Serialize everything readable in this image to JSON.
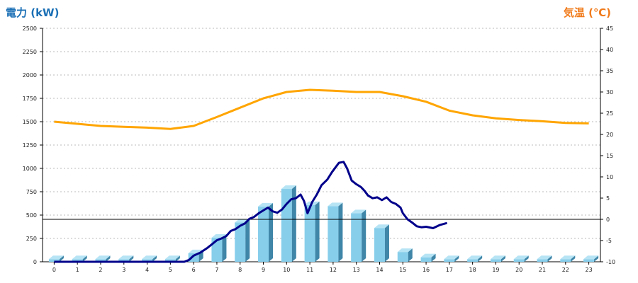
{
  "left_title": "電力 (kW)",
  "right_title": "気温 (℃)",
  "chart_data": {
    "type": "bar",
    "categories": [
      "0",
      "1",
      "2",
      "3",
      "4",
      "5",
      "6",
      "7",
      "8",
      "9",
      "10",
      "11",
      "12",
      "13",
      "14",
      "15",
      "16",
      "17",
      "18",
      "19",
      "20",
      "21",
      "22",
      "23"
    ],
    "series": [
      {
        "kind": "bar",
        "axis": "left",
        "values": [
          28,
          28,
          28,
          28,
          28,
          28,
          92,
          258,
          420,
          592,
          780,
          608,
          596,
          520,
          362,
          105,
          48,
          28,
          28,
          28,
          28,
          28,
          28,
          28
        ],
        "color": "#87ceeb"
      },
      {
        "kind": "line",
        "axis": "left",
        "color": "#00008b",
        "points": [
          [
            0,
            0
          ],
          [
            5.6,
            0
          ],
          [
            5.8,
            20
          ],
          [
            6.0,
            65
          ],
          [
            6.3,
            100
          ],
          [
            6.6,
            150
          ],
          [
            6.8,
            190
          ],
          [
            7.0,
            230
          ],
          [
            7.2,
            250
          ],
          [
            7.4,
            275
          ],
          [
            7.6,
            330
          ],
          [
            7.8,
            350
          ],
          [
            8.0,
            385
          ],
          [
            8.2,
            410
          ],
          [
            8.4,
            460
          ],
          [
            8.6,
            480
          ],
          [
            8.8,
            520
          ],
          [
            9.0,
            550
          ],
          [
            9.2,
            580
          ],
          [
            9.4,
            540
          ],
          [
            9.6,
            525
          ],
          [
            9.8,
            560
          ],
          [
            10.0,
            620
          ],
          [
            10.2,
            670
          ],
          [
            10.4,
            680
          ],
          [
            10.6,
            720
          ],
          [
            10.75,
            650
          ],
          [
            10.9,
            520
          ],
          [
            11.1,
            640
          ],
          [
            11.3,
            720
          ],
          [
            11.5,
            820
          ],
          [
            11.75,
            880
          ],
          [
            11.95,
            960
          ],
          [
            12.1,
            1010
          ],
          [
            12.25,
            1060
          ],
          [
            12.45,
            1070
          ],
          [
            12.6,
            1000
          ],
          [
            12.8,
            870
          ],
          [
            13.0,
            830
          ],
          [
            13.2,
            800
          ],
          [
            13.35,
            760
          ],
          [
            13.5,
            710
          ],
          [
            13.7,
            680
          ],
          [
            13.9,
            690
          ],
          [
            14.1,
            660
          ],
          [
            14.3,
            690
          ],
          [
            14.5,
            640
          ],
          [
            14.7,
            620
          ],
          [
            14.9,
            580
          ],
          [
            15.0,
            520
          ],
          [
            15.2,
            455
          ],
          [
            15.4,
            420
          ],
          [
            15.6,
            380
          ],
          [
            15.8,
            370
          ],
          [
            16.0,
            375
          ],
          [
            16.3,
            360
          ],
          [
            16.6,
            395
          ],
          [
            16.9,
            415
          ]
        ]
      },
      {
        "kind": "line",
        "axis": "right",
        "color": "#ffa500",
        "points": [
          [
            0,
            23
          ],
          [
            1,
            22.5
          ],
          [
            2,
            22
          ],
          [
            3,
            21.8
          ],
          [
            4,
            21.6
          ],
          [
            5,
            21.3
          ],
          [
            6,
            22
          ],
          [
            7,
            24.1
          ],
          [
            8,
            26.3
          ],
          [
            9,
            28.5
          ],
          [
            10,
            30
          ],
          [
            11,
            30.5
          ],
          [
            12,
            30.3
          ],
          [
            13,
            30
          ],
          [
            14,
            30
          ],
          [
            15,
            29
          ],
          [
            16,
            27.7
          ],
          [
            17,
            25.6
          ],
          [
            18,
            24.5
          ],
          [
            19,
            23.8
          ],
          [
            20,
            23.4
          ],
          [
            21,
            23.1
          ],
          [
            22,
            22.7
          ],
          [
            23,
            22.6
          ]
        ]
      }
    ],
    "y_left": {
      "min": 0,
      "max": 2500,
      "ticks": [
        "0",
        "250",
        "500",
        "750",
        "1000",
        "1250",
        "1500",
        "1750",
        "2000",
        "2250",
        "2500"
      ]
    },
    "y_right": {
      "min": -10,
      "max": 45,
      "ticks": [
        "-10",
        "-5",
        "0",
        "5",
        "10",
        "15",
        "20",
        "25",
        "30",
        "35",
        "40",
        "45"
      ]
    },
    "grid": true,
    "reference_line_right": 0
  }
}
